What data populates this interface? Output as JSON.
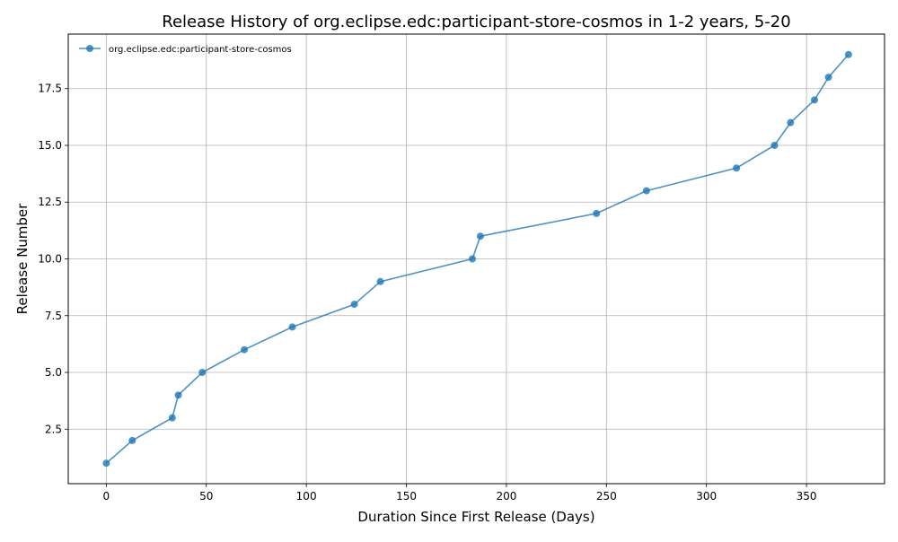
{
  "chart_data": {
    "type": "line",
    "title": "Release History of org.eclipse.edc:participant-store-cosmos in 1-2 years, 5-20",
    "xlabel": "Duration Since First Release (Days)",
    "ylabel": "Release Number",
    "xlim": [
      -19,
      389
    ],
    "ylim": [
      0.1,
      19.9
    ],
    "xticks": [
      0,
      50,
      100,
      150,
      200,
      250,
      300,
      350
    ],
    "xtick_labels": [
      "0",
      "50",
      "100",
      "150",
      "200",
      "250",
      "300",
      "350"
    ],
    "yticks": [
      2.5,
      5.0,
      7.5,
      10.0,
      12.5,
      15.0,
      17.5
    ],
    "ytick_labels": [
      "2.5",
      "5.0",
      "7.5",
      "10.0",
      "12.5",
      "15.0",
      "17.5"
    ],
    "grid": true,
    "legend_position": "top-left",
    "series": [
      {
        "name": "org.eclipse.edc:participant-store-cosmos",
        "color": "#1f77b4",
        "x": [
          0,
          13,
          33,
          36,
          48,
          69,
          93,
          124,
          137,
          183,
          187,
          245,
          270,
          315,
          334,
          342,
          354,
          361,
          371
        ],
        "y": [
          1,
          2,
          3,
          4,
          5,
          6,
          7,
          8,
          9,
          10,
          11,
          12,
          13,
          14,
          15,
          16,
          17,
          18,
          19
        ]
      }
    ]
  }
}
